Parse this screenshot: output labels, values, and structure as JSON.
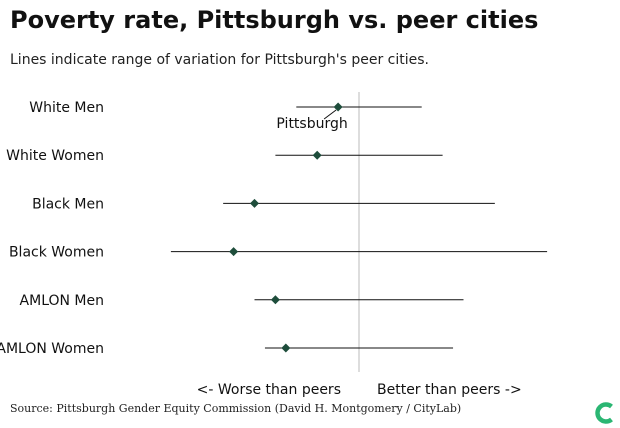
{
  "title": "Poverty rate, Pittsburgh vs. peer cities",
  "subtitle": "Lines indicate range of variation for Pittsburgh's peer cities.",
  "source": "Source: Pittsburgh Gender Equity Commission (David H. Montgomery / CityLab)",
  "colors": {
    "marker": "#1e4d3b",
    "line": "#111111",
    "divider": "#bbbbbb",
    "logo": "#2bb673"
  },
  "chart_data": {
    "type": "range-dot",
    "categories": [
      "White Men",
      "White Women",
      "Black Men",
      "Black Women",
      "AMLON Men",
      "AMLON Women"
    ],
    "series": [
      {
        "name": "Pittsburgh",
        "values": [
          -0.1,
          -0.2,
          -0.5,
          -0.6,
          -0.4,
          -0.35
        ]
      },
      {
        "name": "Range of variation",
        "ranges": [
          [
            -0.3,
            0.3
          ],
          [
            -0.4,
            0.4
          ],
          [
            -0.65,
            0.65
          ],
          [
            -0.9,
            0.9
          ],
          [
            -0.5,
            0.5
          ],
          [
            -0.45,
            0.45
          ]
        ]
      }
    ],
    "xlim": [
      -1,
      1
    ],
    "point_label": {
      "text": "Pittsburgh",
      "category": "White Men"
    },
    "axis_annotations": {
      "left": "<- Worse than peers",
      "right": "Better than peers ->"
    },
    "grid": false
  }
}
